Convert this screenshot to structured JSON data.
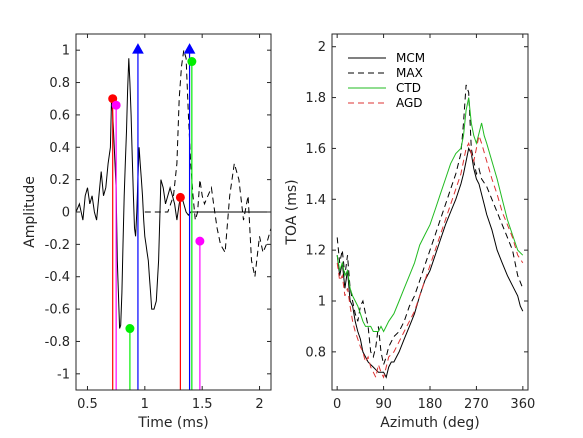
{
  "chart_data": [
    {
      "type": "line",
      "xlabel": "Time (ms)",
      "ylabel": "Amplitude",
      "xlim": [
        0.4,
        2.1
      ],
      "ylim": [
        -1.1,
        1.1
      ],
      "xticks": [
        0.5,
        1,
        1.5,
        2
      ],
      "xtick_labels": [
        "0.5",
        "1",
        "1.5",
        "2"
      ],
      "yticks": [
        -1,
        -0.8,
        -0.6,
        -0.4,
        -0.2,
        0,
        0.2,
        0.4,
        0.6,
        0.8,
        1
      ],
      "ytick_labels": [
        "-1",
        "-0.8",
        "-0.6",
        "-0.4",
        "-0.2",
        "0",
        "0.2",
        "0.4",
        "0.6",
        "0.8",
        "1"
      ],
      "series": [
        {
          "style": "solid",
          "color": "#000000",
          "x": [
            0.4,
            0.43,
            0.46,
            0.48,
            0.5,
            0.52,
            0.54,
            0.56,
            0.58,
            0.6,
            0.62,
            0.64,
            0.66,
            0.68,
            0.7,
            0.71,
            0.72,
            0.73,
            0.74,
            0.75,
            0.76,
            0.77,
            0.78,
            0.79,
            0.8,
            0.81,
            0.82,
            0.83,
            0.84,
            0.85,
            0.86,
            0.87,
            0.88,
            0.89,
            0.9,
            0.91,
            0.92,
            0.93,
            0.94,
            0.95,
            0.96,
            0.97,
            0.98,
            0.99,
            1.0,
            1.01,
            1.02,
            1.03,
            1.04,
            1.05,
            1.06,
            1.08,
            1.1,
            1.12,
            1.14,
            1.16,
            1.18,
            1.2,
            1.22,
            1.24,
            1.26,
            1.28,
            1.3,
            1.32,
            1.34,
            1.36,
            1.38,
            1.4,
            1.42,
            1.44,
            1.46,
            1.48,
            1.5,
            1.55,
            1.6,
            1.65,
            1.7,
            1.75,
            1.8,
            1.85,
            1.9,
            1.95,
            2.0,
            2.05,
            2.1
          ],
          "y": [
            0.0,
            0.05,
            -0.05,
            0.1,
            0.15,
            0.05,
            0.1,
            0.0,
            -0.05,
            0.1,
            0.25,
            0.1,
            0.15,
            0.3,
            0.4,
            0.72,
            0.6,
            0.45,
            0.3,
            0.15,
            -0.3,
            -0.5,
            -0.72,
            -0.7,
            -0.5,
            -0.2,
            0.1,
            0.3,
            0.5,
            0.75,
            0.95,
            0.8,
            0.6,
            0.35,
            0.1,
            -0.1,
            -0.15,
            0.0,
            0.2,
            0.4,
            0.3,
            0.2,
            0.1,
            -0.05,
            -0.15,
            -0.2,
            -0.25,
            -0.3,
            -0.4,
            -0.5,
            -0.6,
            -0.6,
            -0.55,
            -0.3,
            0.2,
            0.15,
            0.05,
            0.1,
            0.15,
            0.1,
            0.05,
            -0.05,
            0.05,
            0.1,
            0.05,
            0.0,
            -0.02,
            0.0,
            0.0,
            0.0,
            0.0,
            0.0,
            0.0,
            0.0,
            0.0,
            0.0,
            0.0,
            0.0,
            0.0,
            0.0,
            0.0,
            0.0,
            0.0,
            0.0,
            0.0
          ]
        },
        {
          "style": "dashed",
          "color": "#000000",
          "x": [
            1.0,
            1.1,
            1.2,
            1.25,
            1.28,
            1.3,
            1.32,
            1.34,
            1.36,
            1.38,
            1.4,
            1.42,
            1.44,
            1.46,
            1.48,
            1.5,
            1.52,
            1.55,
            1.58,
            1.6,
            1.63,
            1.66,
            1.7,
            1.74,
            1.78,
            1.82,
            1.86,
            1.9,
            1.93,
            1.96,
            2.0,
            2.03,
            2.06,
            2.1
          ],
          "y": [
            0.0,
            0.0,
            0.0,
            0.1,
            0.3,
            0.7,
            0.9,
            1.0,
            0.95,
            0.6,
            0.3,
            0.1,
            -0.05,
            0.0,
            0.2,
            0.1,
            0.05,
            0.1,
            0.15,
            0.05,
            -0.1,
            -0.2,
            -0.25,
            0.1,
            0.3,
            0.2,
            -0.05,
            0.1,
            -0.3,
            -0.4,
            -0.15,
            -0.25,
            -0.2,
            -0.1
          ]
        }
      ],
      "markers": [
        {
          "x": 0.72,
          "y": 0.7,
          "color": "#ff0000",
          "shape": "circle",
          "line": true
        },
        {
          "x": 0.75,
          "y": 0.66,
          "color": "#ff00ff",
          "shape": "circle",
          "line": true
        },
        {
          "x": 0.87,
          "y": -0.72,
          "color": "#00ee00",
          "shape": "circle",
          "line": true
        },
        {
          "x": 0.94,
          "y": 1.0,
          "color": "#0000ff",
          "shape": "triangle",
          "line": true
        },
        {
          "x": 1.31,
          "y": 0.09,
          "color": "#ff0000",
          "shape": "circle",
          "line": true
        },
        {
          "x": 1.39,
          "y": 1.0,
          "color": "#0000ff",
          "shape": "triangle",
          "line": true
        },
        {
          "x": 1.41,
          "y": 0.93,
          "color": "#00ee00",
          "shape": "circle",
          "line": true
        },
        {
          "x": 1.48,
          "y": -0.18,
          "color": "#ff00ff",
          "shape": "circle",
          "line": true
        }
      ]
    },
    {
      "type": "line",
      "xlabel": "Azimuth (deg)",
      "ylabel": "TOA (ms)",
      "xlim": [
        -10,
        370
      ],
      "ylim": [
        0.65,
        2.05
      ],
      "xticks": [
        0,
        90,
        180,
        270,
        360
      ],
      "xtick_labels": [
        "0",
        "90",
        "180",
        "270",
        "360"
      ],
      "yticks": [
        0.8,
        1.0,
        1.2,
        1.4,
        1.6,
        1.8,
        2.0
      ],
      "ytick_labels": [
        "0.8",
        "1",
        "1.2",
        "1.4",
        "1.6",
        "1.8",
        "2"
      ],
      "legend": {
        "position": "top-left"
      },
      "series": [
        {
          "name": "MCM",
          "style": "solid",
          "color": "#000000",
          "x": [
            0,
            5,
            10,
            15,
            20,
            25,
            30,
            35,
            40,
            45,
            50,
            55,
            60,
            65,
            70,
            75,
            80,
            85,
            90,
            95,
            100,
            105,
            110,
            115,
            120,
            130,
            140,
            150,
            160,
            170,
            180,
            190,
            200,
            210,
            220,
            230,
            240,
            245,
            250,
            255,
            260,
            265,
            270,
            275,
            280,
            285,
            290,
            300,
            310,
            320,
            330,
            340,
            350,
            355,
            360
          ],
          "y": [
            1.18,
            1.1,
            1.15,
            1.05,
            1.12,
            1.0,
            0.98,
            0.92,
            0.88,
            0.85,
            0.8,
            0.78,
            0.76,
            0.75,
            0.74,
            0.73,
            0.72,
            0.72,
            0.72,
            0.7,
            0.74,
            0.76,
            0.76,
            0.78,
            0.8,
            0.85,
            0.9,
            0.95,
            1.02,
            1.08,
            1.12,
            1.18,
            1.24,
            1.3,
            1.35,
            1.4,
            1.46,
            1.5,
            1.55,
            1.6,
            1.58,
            1.52,
            1.48,
            1.46,
            1.42,
            1.38,
            1.34,
            1.28,
            1.2,
            1.15,
            1.1,
            1.06,
            1.02,
            0.98,
            0.96
          ]
        },
        {
          "name": "MAX",
          "style": "dashed",
          "color": "#000000",
          "x": [
            0,
            5,
            10,
            15,
            20,
            25,
            30,
            35,
            40,
            45,
            50,
            55,
            60,
            65,
            70,
            75,
            80,
            85,
            90,
            95,
            100,
            110,
            120,
            130,
            140,
            150,
            160,
            170,
            180,
            190,
            200,
            210,
            220,
            230,
            240,
            245,
            250,
            255,
            260,
            265,
            270,
            275,
            280,
            290,
            300,
            310,
            320,
            330,
            340,
            350,
            360
          ],
          "y": [
            1.25,
            1.15,
            1.2,
            1.1,
            1.18,
            1.05,
            1.0,
            0.95,
            0.92,
            0.98,
            1.0,
            0.95,
            0.9,
            0.8,
            0.78,
            0.82,
            0.9,
            0.8,
            0.75,
            0.78,
            0.82,
            0.86,
            0.88,
            0.92,
            0.98,
            1.02,
            1.08,
            1.14,
            1.2,
            1.26,
            1.32,
            1.38,
            1.44,
            1.5,
            1.58,
            1.7,
            1.85,
            1.82,
            1.6,
            1.55,
            1.5,
            1.52,
            1.48,
            1.45,
            1.4,
            1.35,
            1.3,
            1.25,
            1.2,
            1.1,
            1.05
          ]
        },
        {
          "name": "CTD",
          "style": "solid",
          "color": "#22bb22",
          "x": [
            0,
            5,
            10,
            15,
            20,
            25,
            30,
            35,
            40,
            45,
            50,
            55,
            60,
            65,
            70,
            75,
            80,
            85,
            90,
            95,
            100,
            110,
            120,
            130,
            140,
            150,
            160,
            170,
            180,
            190,
            200,
            210,
            220,
            230,
            240,
            245,
            250,
            255,
            260,
            265,
            270,
            275,
            280,
            285,
            290,
            300,
            310,
            320,
            330,
            340,
            350,
            360
          ],
          "y": [
            1.18,
            1.12,
            1.15,
            1.1,
            1.12,
            1.05,
            1.02,
            1.0,
            0.98,
            0.95,
            0.92,
            0.9,
            0.9,
            0.9,
            0.88,
            0.88,
            0.88,
            0.9,
            0.88,
            0.9,
            0.92,
            0.95,
            1.0,
            1.05,
            1.1,
            1.15,
            1.22,
            1.26,
            1.3,
            1.36,
            1.42,
            1.48,
            1.54,
            1.58,
            1.6,
            1.65,
            1.75,
            1.8,
            1.7,
            1.65,
            1.62,
            1.66,
            1.7,
            1.65,
            1.62,
            1.55,
            1.48,
            1.4,
            1.32,
            1.26,
            1.2,
            1.18
          ]
        },
        {
          "name": "AGD",
          "style": "dashed",
          "color": "#dd3333",
          "x": [
            0,
            5,
            10,
            15,
            20,
            25,
            30,
            35,
            40,
            45,
            50,
            55,
            60,
            65,
            70,
            75,
            80,
            85,
            90,
            95,
            100,
            110,
            120,
            130,
            140,
            150,
            160,
            170,
            180,
            190,
            200,
            210,
            220,
            230,
            240,
            245,
            250,
            255,
            260,
            265,
            270,
            275,
            280,
            290,
            300,
            310,
            320,
            330,
            340,
            350,
            360
          ],
          "y": [
            1.15,
            1.08,
            1.1,
            1.02,
            1.05,
            0.98,
            0.92,
            0.88,
            0.85,
            0.82,
            0.8,
            0.76,
            0.78,
            0.74,
            0.72,
            0.7,
            0.75,
            0.72,
            0.7,
            0.74,
            0.78,
            0.8,
            0.84,
            0.88,
            0.92,
            0.96,
            1.02,
            1.08,
            1.14,
            1.2,
            1.26,
            1.32,
            1.38,
            1.44,
            1.5,
            1.55,
            1.6,
            1.62,
            1.58,
            1.55,
            1.6,
            1.65,
            1.62,
            1.55,
            1.48,
            1.42,
            1.35,
            1.3,
            1.25,
            1.18,
            1.15
          ]
        }
      ]
    }
  ]
}
